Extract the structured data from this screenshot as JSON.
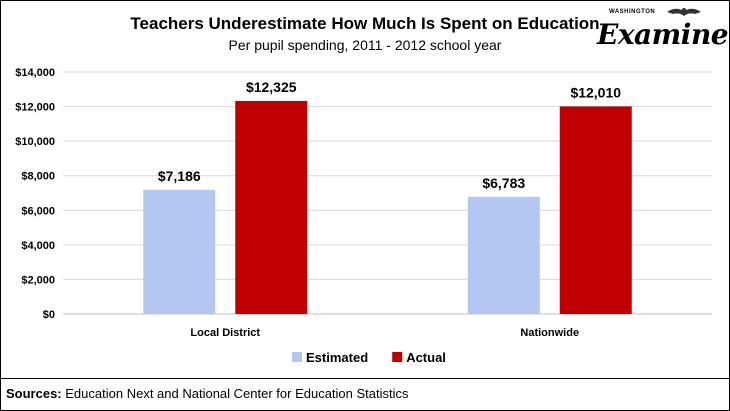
{
  "chart_data": {
    "type": "bar",
    "title": "Teachers Underestimate How Much Is Spent on Education",
    "subtitle": "Per pupil spending, 2011 - 2012 school year",
    "categories": [
      "Local District",
      "Nationwide"
    ],
    "series": [
      {
        "name": "Estimated",
        "values": [
          7186,
          6783
        ],
        "labels": [
          "$7,186",
          "$6,783"
        ],
        "color": "#b4c7f0"
      },
      {
        "name": "Actual",
        "values": [
          12325,
          12010
        ],
        "labels": [
          "$12,325",
          "$12,010"
        ],
        "color": "#c00000"
      }
    ],
    "ylim": [
      0,
      14000
    ],
    "yticks": [
      0,
      2000,
      4000,
      6000,
      8000,
      10000,
      12000,
      14000
    ],
    "ytick_labels": [
      "$0",
      "$2,000",
      "$4,000",
      "$6,000",
      "$8,000",
      "$10,000",
      "$12,000",
      "$14,000"
    ],
    "xlabel": "",
    "ylabel": "",
    "grid": true,
    "legend_position": "bottom"
  },
  "logo": {
    "small_text": "WASHINGTON",
    "big_text": "Examiner"
  },
  "sources": {
    "label": "Sources:",
    "text": "Education Next and National Center for Education Statistics"
  }
}
